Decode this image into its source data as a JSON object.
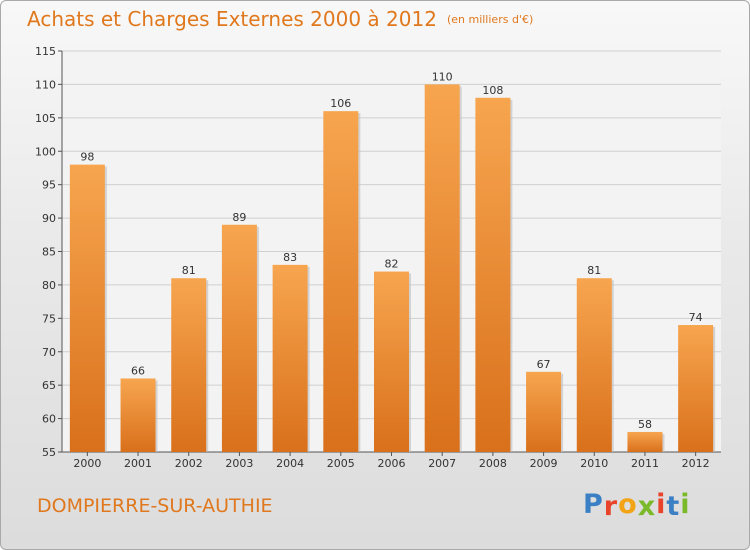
{
  "header": {
    "title": "Achats et Charges Externes 2000 à 2012",
    "unit": "(en milliers d'€)"
  },
  "footer": {
    "commune": "DOMPIERRE-SUR-AUTHIE",
    "logo_letters": [
      "P",
      "r",
      "o",
      "x",
      "i",
      "t",
      "i"
    ]
  },
  "colors": {
    "accent": "#e0781e",
    "bar_top": "#f7a54f",
    "bar_bottom": "#d9701b",
    "logo": [
      "#3b7fc4",
      "#e8432b",
      "#f2a416",
      "#7ab929",
      "#e8432b",
      "#3b7fc4",
      "#7ab929"
    ]
  },
  "chart_data": {
    "type": "bar",
    "categories": [
      "2000",
      "2001",
      "2002",
      "2003",
      "2004",
      "2005",
      "2006",
      "2007",
      "2008",
      "2009",
      "2010",
      "2011",
      "2012"
    ],
    "values": [
      98,
      66,
      81,
      89,
      83,
      106,
      82,
      110,
      108,
      67,
      81,
      58,
      74
    ],
    "title": "Achats et Charges Externes 2000 à 2012",
    "subtitle": "(en milliers d'€)",
    "ylim": [
      55,
      115
    ],
    "yticks": [
      55,
      60,
      65,
      70,
      75,
      80,
      85,
      90,
      95,
      100,
      105,
      110,
      115
    ],
    "grid": true,
    "data_labels": true
  }
}
